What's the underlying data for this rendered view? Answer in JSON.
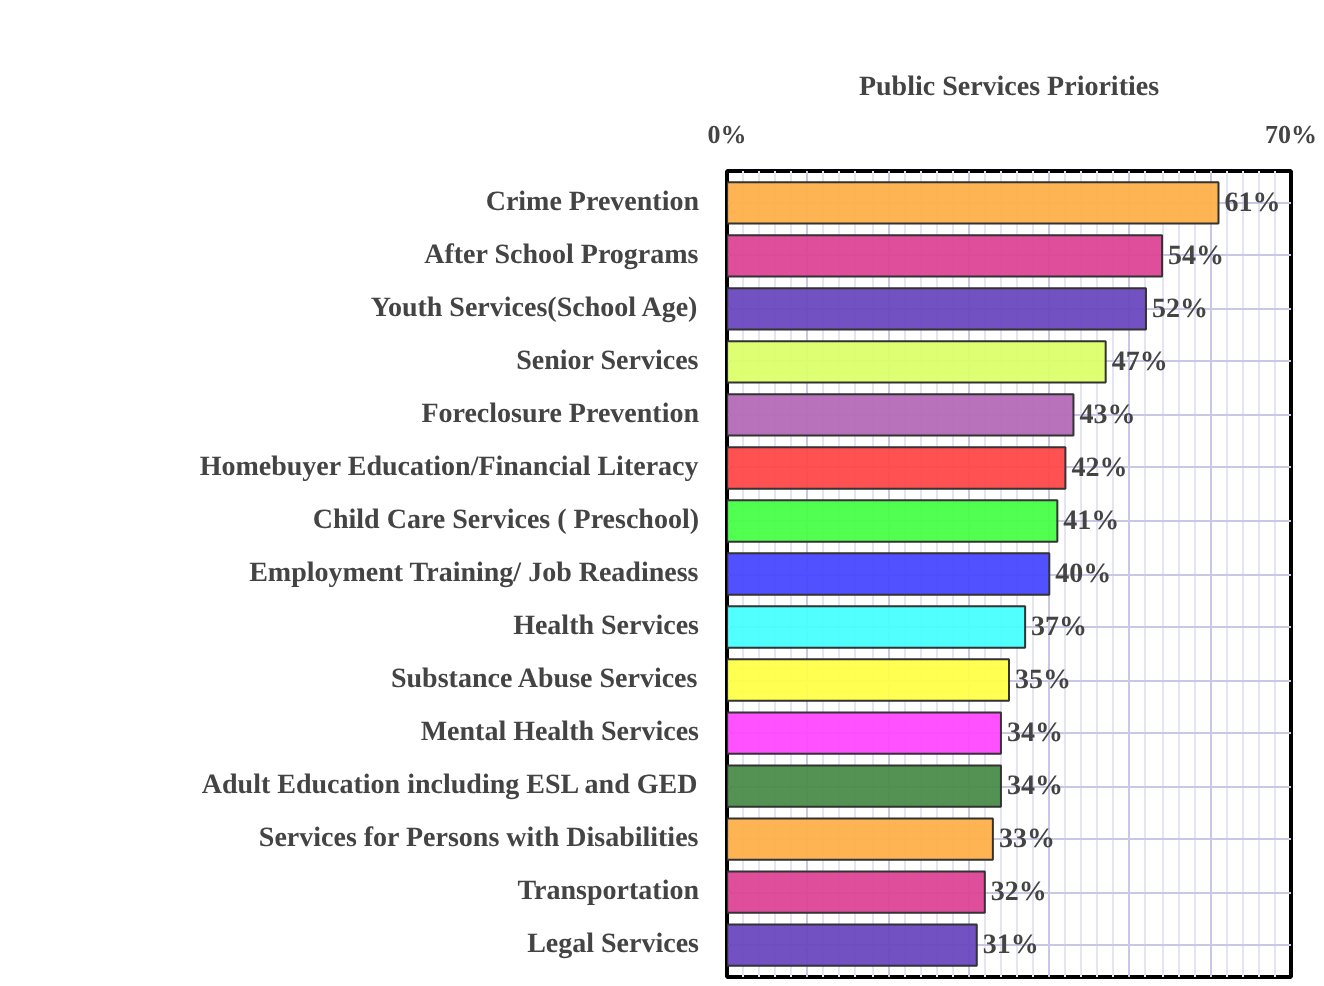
{
  "chart_data": {
    "type": "bar",
    "orientation": "horizontal",
    "title": "Public Services Priorities",
    "categories": [
      "Crime Prevention",
      "After School Programs",
      "Youth Services(School Age)",
      "Senior Services",
      "Foreclosure Prevention",
      "Homebuyer Education/Financial Literacy",
      "Child Care Services ( Preschool)",
      "Employment Training/ Job Readiness",
      "Health Services",
      "Substance Abuse Services",
      "Mental Health Services",
      "Adult Education including ESL and GED",
      "Services for Persons with Disabilities",
      "Transportation",
      "Legal Services"
    ],
    "values": [
      61,
      54,
      52,
      47,
      43,
      42,
      41,
      40,
      37,
      35,
      34,
      34,
      33,
      32,
      31
    ],
    "colors": [
      "#ffb04a",
      "#dc4496",
      "#6a48c0",
      "#dcff6a",
      "#b46ab8",
      "#ff4848",
      "#48ff48",
      "#4848ff",
      "#48ffff",
      "#ffff48",
      "#ff48ff",
      "#4a8c4a",
      "#ffb04a",
      "#dc4496",
      "#6a48c0"
    ],
    "value_labels": [
      "61%",
      "54%",
      "52%",
      "47%",
      "43%",
      "42%",
      "41%",
      "40%",
      "37%",
      "35%",
      "34%",
      "34%",
      "33%",
      "32%",
      "31%"
    ],
    "xlim": [
      0,
      70
    ],
    "xticks": [
      {
        "value": 0,
        "label": "0%"
      },
      {
        "value": 10,
        "label": null
      },
      {
        "value": 20,
        "label": null
      },
      {
        "value": 30,
        "label": null
      },
      {
        "value": 40,
        "label": null
      },
      {
        "value": 50,
        "label": null
      },
      {
        "value": 60,
        "label": null
      },
      {
        "value": 70,
        "label": "70%"
      }
    ],
    "grid": true
  }
}
